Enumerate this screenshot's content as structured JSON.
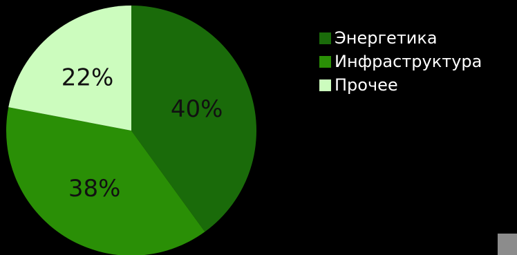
{
  "chart_data": {
    "type": "pie",
    "title": "",
    "categories": [
      "Энергетика",
      "Инфраструктура",
      "Прочее"
    ],
    "values": [
      40,
      38,
      22
    ],
    "data_labels": [
      "40%",
      "38%",
      "22%"
    ],
    "colors": [
      "#1a6b0a",
      "#2a8f06",
      "#ccfcbe"
    ],
    "start_angle_deg": 0,
    "direction": "clockwise",
    "legend_position": "right"
  }
}
